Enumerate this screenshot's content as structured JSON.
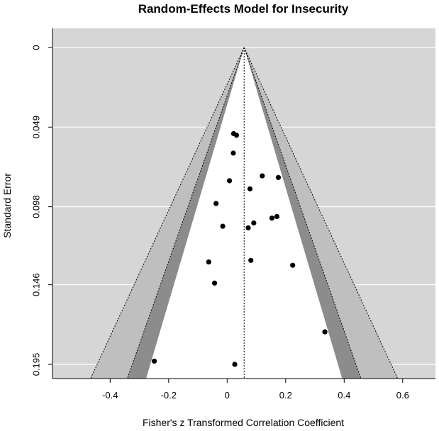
{
  "chart_data": {
    "type": "scatter",
    "subtype": "contour-enhanced funnel plot",
    "title": "Random-Effects Model for Insecurity",
    "xlabel": "Fisher's z Transformed Correlation Coefficient",
    "ylabel": "Standard Error",
    "xlim": [
      -0.6,
      0.7
    ],
    "ylim": [
      0.2,
      0
    ],
    "x_ticks": [
      -0.4,
      -0.2,
      0,
      0.2,
      0.4,
      0.6
    ],
    "x_tick_labels": [
      "-0.4",
      "-0.2",
      "0",
      "0.2",
      "0.4",
      "0.6"
    ],
    "y_ticks": [
      0,
      0.049,
      0.098,
      0.146,
      0.195
    ],
    "y_tick_labels": [
      "0",
      "0.049",
      "0.098",
      "0.146",
      "0.195"
    ],
    "grid": "horizontal",
    "estimate": 0.058,
    "contour_z": [
      1.645,
      1.96,
      2.576
    ],
    "colors": {
      "background": "#d6d6d6",
      "inner_region": "#ffffff",
      "band_90_95": "#8c8c8c",
      "band_95_99": "#bfbfbf",
      "points": "#000000"
    },
    "points": [
      {
        "x": 0.022,
        "y": 0.053
      },
      {
        "x": 0.032,
        "y": 0.054
      },
      {
        "x": 0.021,
        "y": 0.065
      },
      {
        "x": 0.12,
        "y": 0.079
      },
      {
        "x": 0.175,
        "y": 0.08
      },
      {
        "x": 0.008,
        "y": 0.082
      },
      {
        "x": 0.078,
        "y": 0.087
      },
      {
        "x": -0.038,
        "y": 0.096
      },
      {
        "x": 0.153,
        "y": 0.105
      },
      {
        "x": 0.17,
        "y": 0.104
      },
      {
        "x": 0.091,
        "y": 0.108
      },
      {
        "x": -0.015,
        "y": 0.11
      },
      {
        "x": 0.072,
        "y": 0.111
      },
      {
        "x": 0.081,
        "y": 0.131
      },
      {
        "x": -0.063,
        "y": 0.132
      },
      {
        "x": 0.224,
        "y": 0.134
      },
      {
        "x": -0.043,
        "y": 0.145
      },
      {
        "x": 0.334,
        "y": 0.175
      },
      {
        "x": -0.249,
        "y": 0.193
      },
      {
        "x": 0.026,
        "y": 0.195
      }
    ]
  }
}
